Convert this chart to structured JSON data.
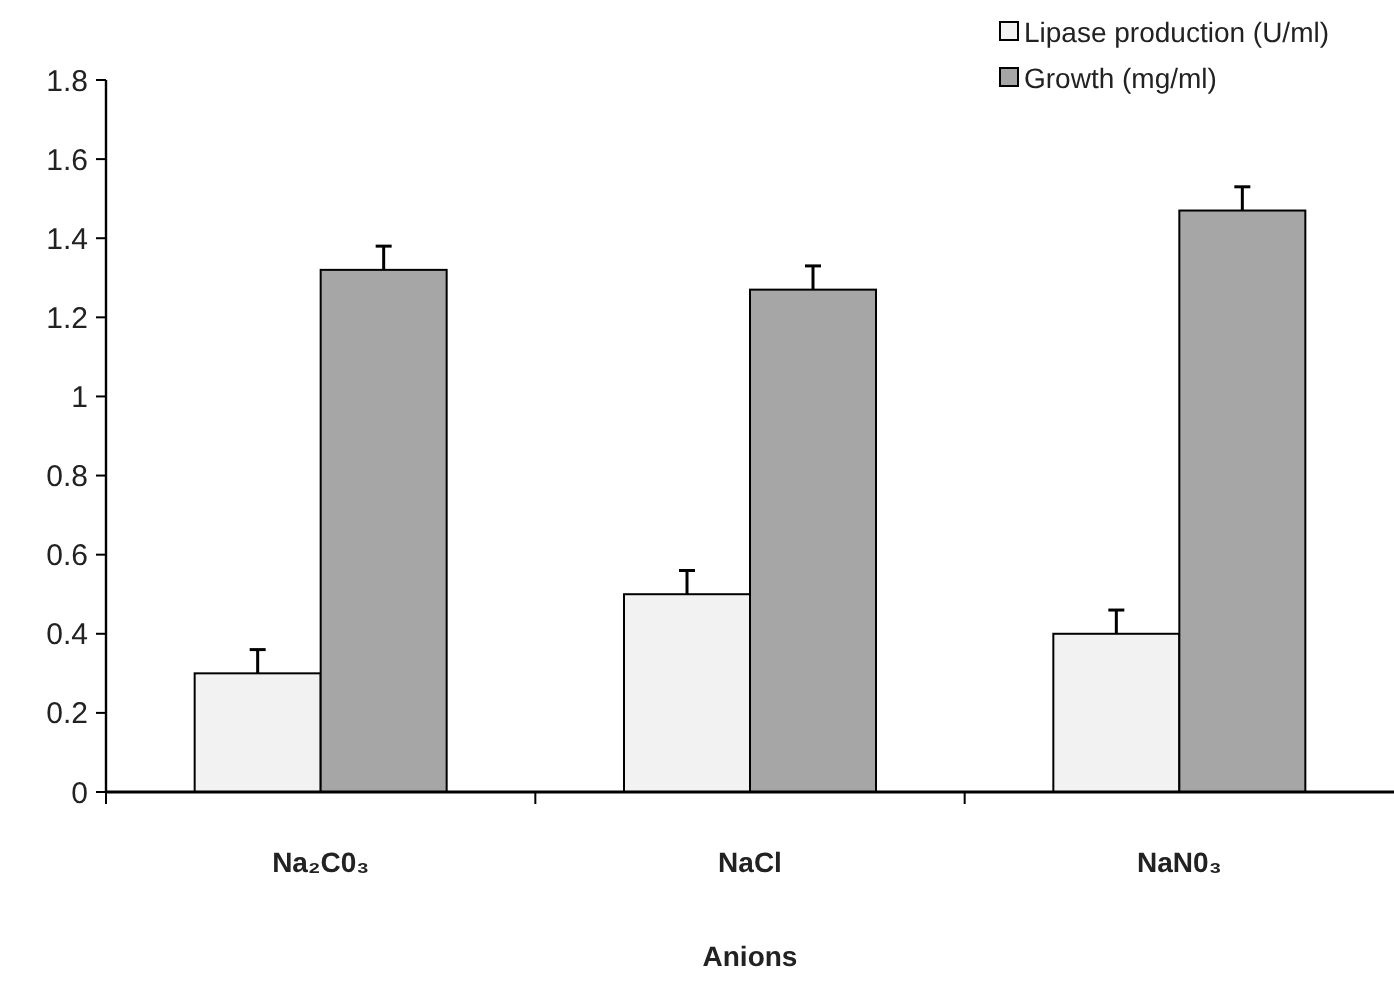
{
  "chart_data": {
    "type": "bar",
    "xlabel": "Anions",
    "categories": [
      "Na₂C0₃",
      "NaCl",
      "NaN0₃"
    ],
    "series": [
      {
        "name": "Lipase production (U/ml)",
        "color": "#f2f2f2",
        "values": [
          0.3,
          0.5,
          0.4
        ],
        "errors": [
          [
            0.3,
            0.36
          ],
          [
            0.5,
            0.56
          ],
          [
            0.4,
            0.46
          ]
        ]
      },
      {
        "name": "Growth (mg/ml)",
        "color": "#a6a6a6",
        "values": [
          1.32,
          1.27,
          1.47
        ],
        "errors": [
          [
            1.32,
            1.38
          ],
          [
            1.27,
            1.33
          ],
          [
            1.47,
            1.53
          ]
        ]
      }
    ],
    "ylim": [
      0,
      1.8
    ],
    "yticks": [
      0,
      0.2,
      0.4,
      0.6,
      0.8,
      1,
      1.2,
      1.4,
      1.6,
      1.8
    ],
    "grid": false,
    "legend": "top right"
  }
}
